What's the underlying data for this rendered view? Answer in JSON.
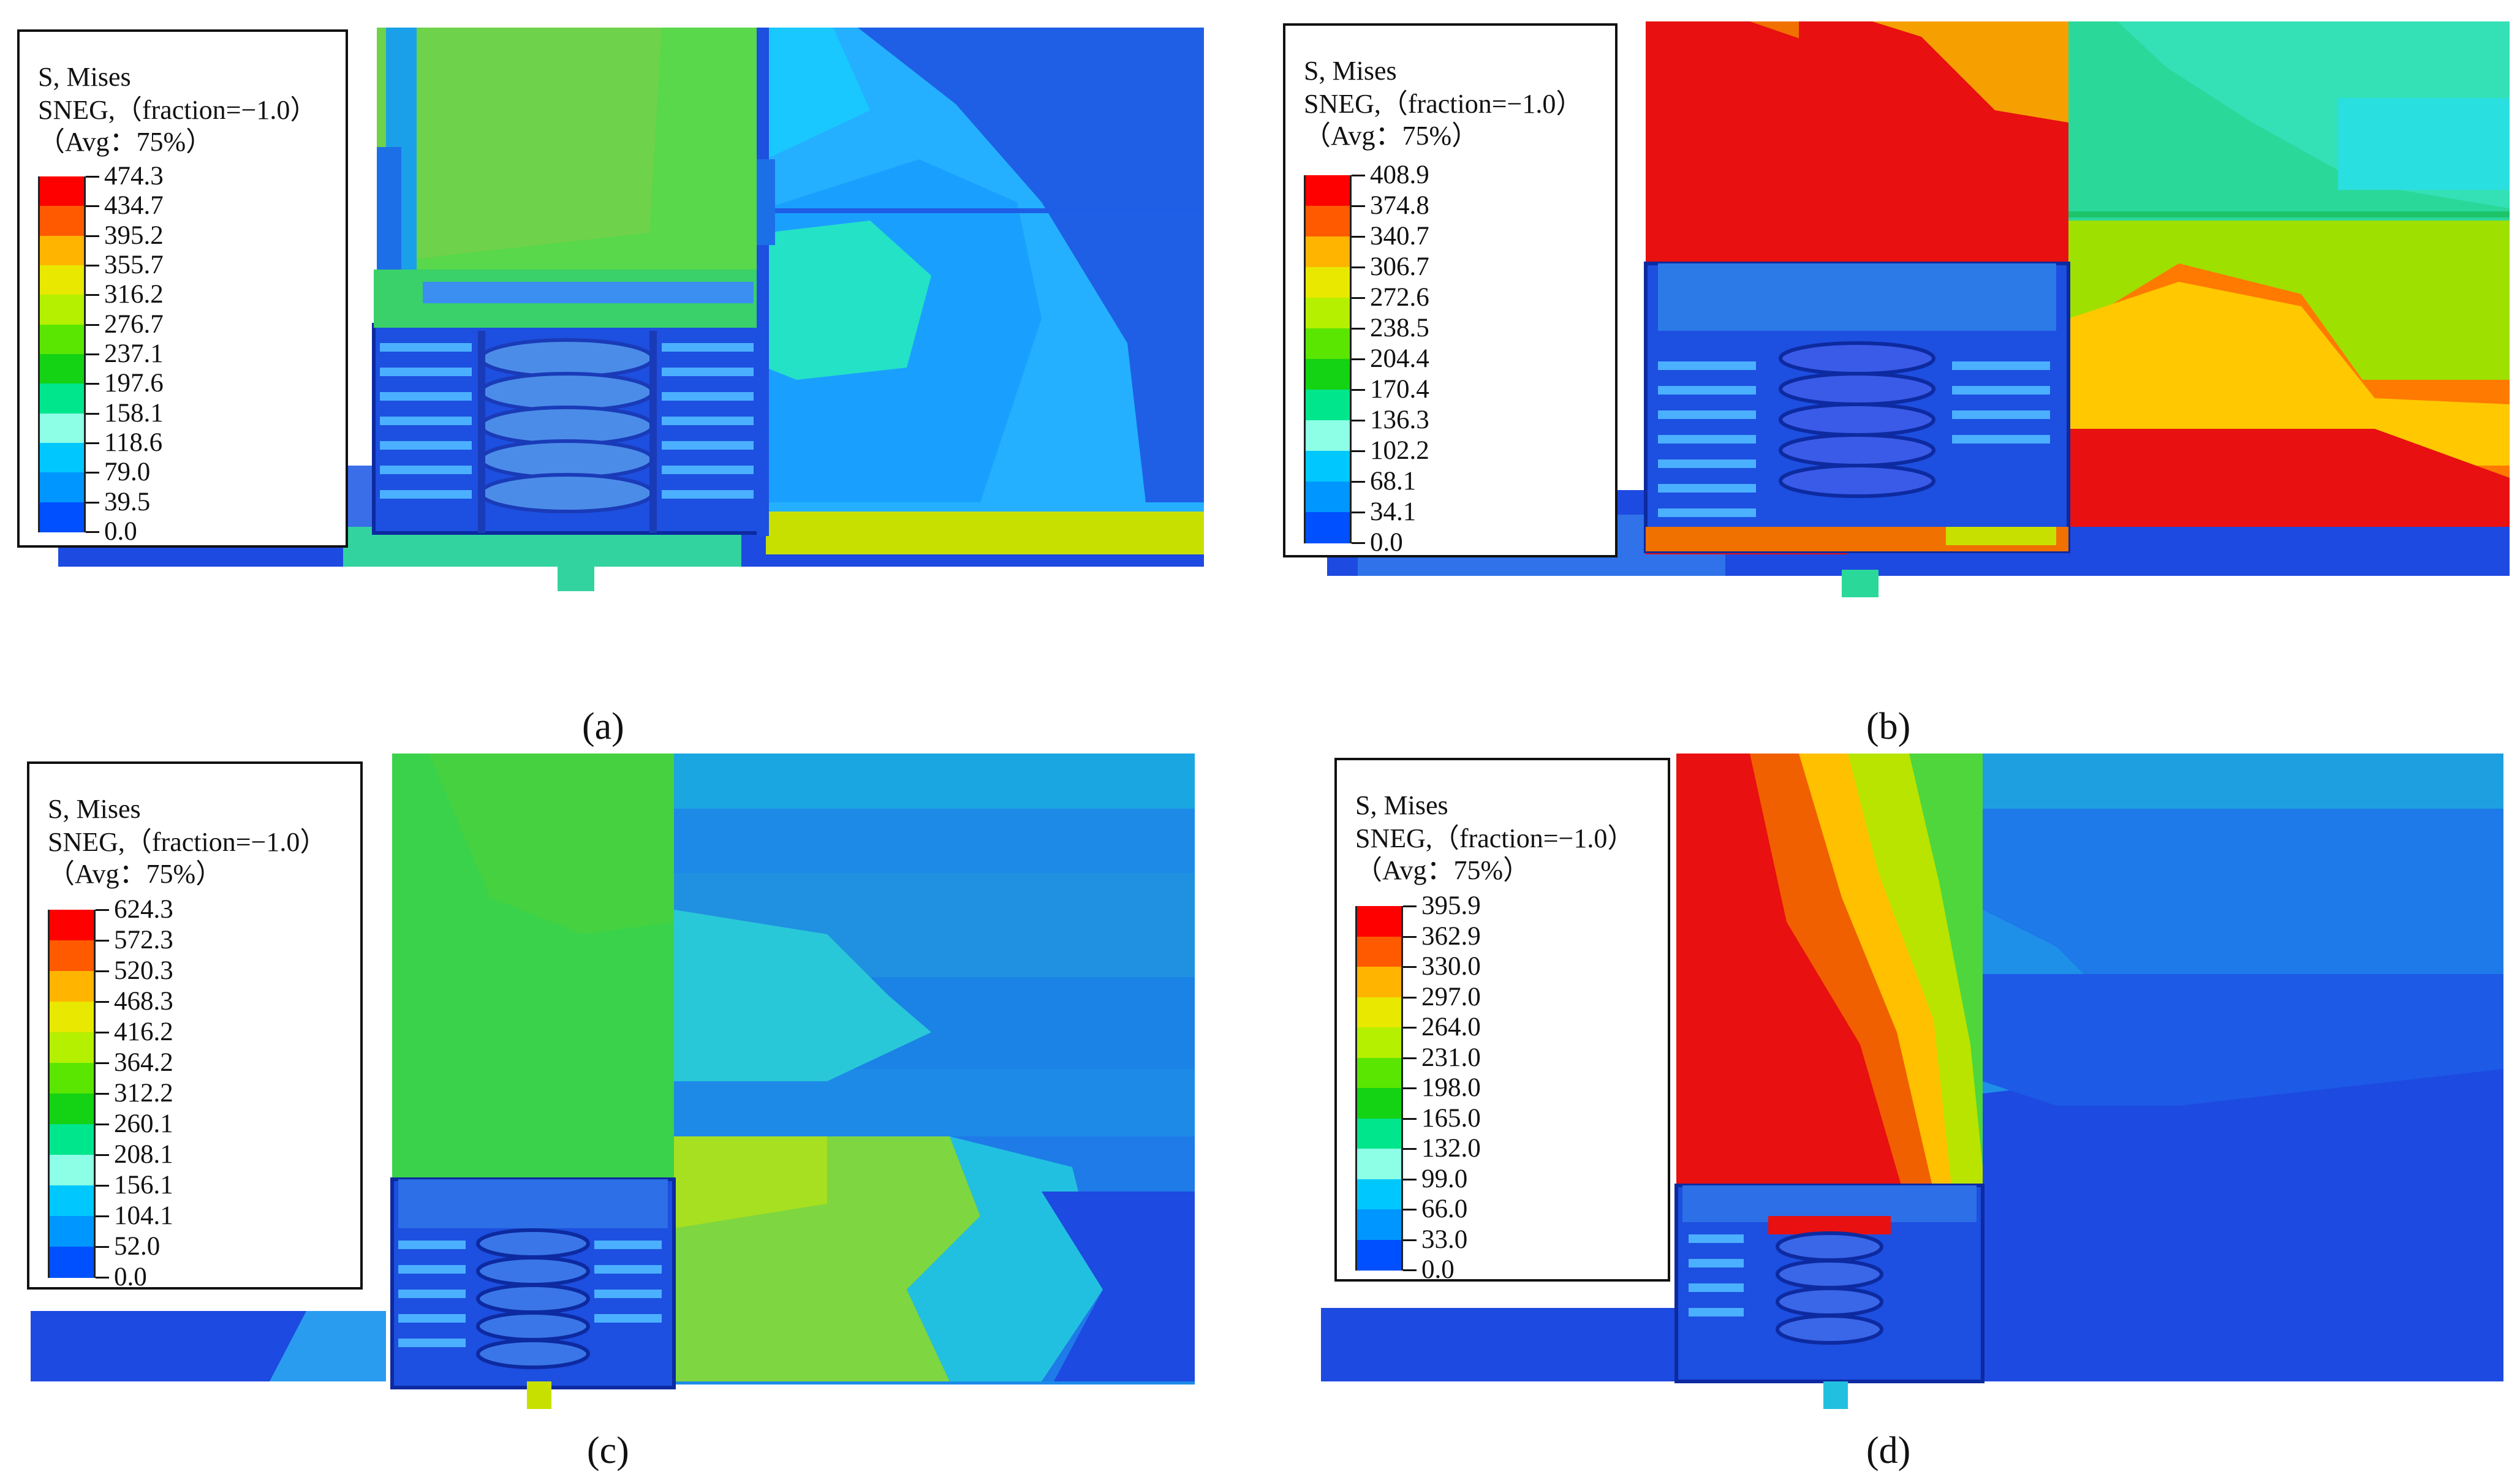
{
  "panels": [
    {
      "id": "a",
      "caption": "(a)",
      "legend": {
        "title": "S, Mises",
        "subtitle": "SNEG,（fraction=−1.0）",
        "avg": "（Avg：75%）",
        "levels": [
          "474.3",
          "434.7",
          "395.2",
          "355.7",
          "316.2",
          "276.7",
          "237.1",
          "197.6",
          "158.1",
          "118.6",
          "79.0",
          "39.5",
          "0.0"
        ]
      }
    },
    {
      "id": "b",
      "caption": "(b)",
      "legend": {
        "title": "S, Mises",
        "subtitle": "SNEG,（fraction=−1.0）",
        "avg": "（Avg：75%）",
        "levels": [
          "408.9",
          "374.8",
          "340.7",
          "306.7",
          "272.6",
          "238.5",
          "204.4",
          "170.4",
          "136.3",
          "102.2",
          "68.1",
          "34.1",
          "0.0"
        ]
      }
    },
    {
      "id": "c",
      "caption": "(c)",
      "legend": {
        "title": "S, Mises",
        "subtitle": "SNEG,（fraction=−1.0）",
        "avg": "（Avg：75%）",
        "levels": [
          "624.3",
          "572.3",
          "520.3",
          "468.3",
          "416.2",
          "364.2",
          "312.2",
          "260.1",
          "208.1",
          "156.1",
          "104.1",
          "52.0",
          "0.0"
        ]
      }
    },
    {
      "id": "d",
      "caption": "(d)",
      "legend": {
        "title": "S, Mises",
        "subtitle": "SNEG,（fraction=−1.0）",
        "avg": "（Avg：75%）",
        "levels": [
          "395.9",
          "362.9",
          "330.0",
          "297.0",
          "264.0",
          "231.0",
          "198.0",
          "165.0",
          "132.0",
          "99.0",
          "66.0",
          "33.0",
          "0.0"
        ]
      }
    }
  ],
  "colormap": [
    "#ff0000",
    "#ff5a00",
    "#ffb400",
    "#e8e800",
    "#b4f000",
    "#5ae600",
    "#14d214",
    "#00e68c",
    "#8cffe6",
    "#00c8ff",
    "#0096ff",
    "#0050ff",
    "#0014e6"
  ]
}
